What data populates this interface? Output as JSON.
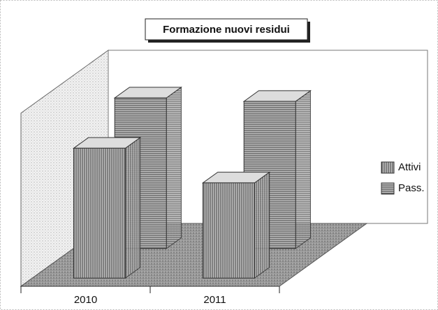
{
  "chart_data": {
    "type": "bar3d",
    "title": "Formazione nuovi residui",
    "categories": [
      "2010",
      "2011"
    ],
    "series": [
      {
        "name": "Attivi",
        "color": "#8a8a8a",
        "pattern": "vertical",
        "values": [
          75,
          55
        ]
      },
      {
        "name": "Pass.",
        "color": "#7a7a7a",
        "pattern": "horizontal",
        "values": [
          87,
          85
        ]
      }
    ],
    "ylim": [
      0,
      100
    ],
    "legend": "right"
  }
}
